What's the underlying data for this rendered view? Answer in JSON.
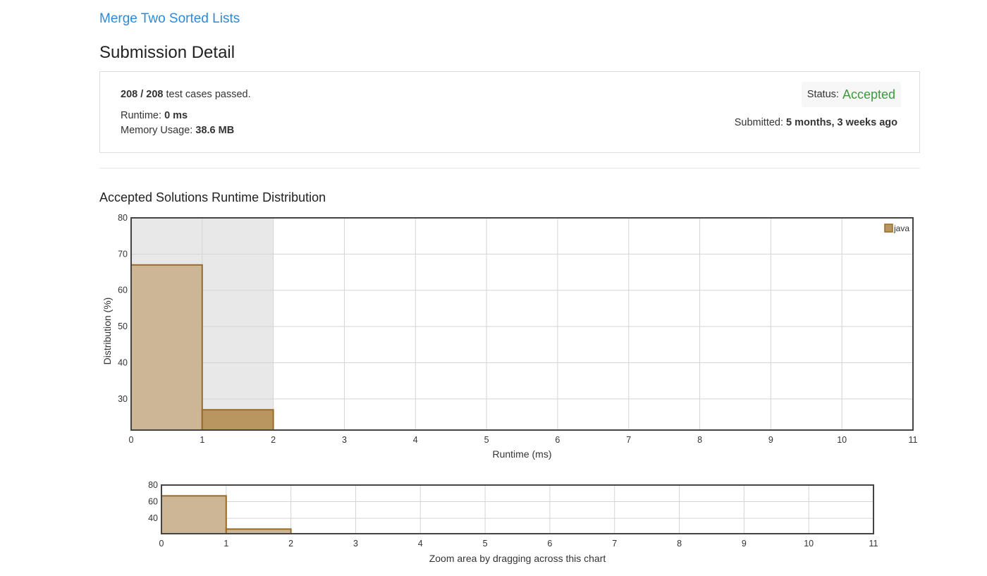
{
  "header": {
    "problem_link": "Merge Two Sorted Lists",
    "page_title": "Submission Detail"
  },
  "submission": {
    "cases_passed": "208 / 208",
    "cases_suffix": " test cases passed.",
    "runtime_label": "Runtime: ",
    "runtime_value": "0 ms",
    "memory_label": "Memory Usage: ",
    "memory_value": "38.6 MB",
    "status_label": "Status: ",
    "status_value": "Accepted",
    "submitted_label": "Submitted: ",
    "submitted_value": "5 months, 3 weeks ago"
  },
  "colors": {
    "link": "#2d8ad8",
    "accepted": "#3b9b3b",
    "bar_fill": "#ccb696",
    "bar_fill_selected": "#b99660",
    "bar_stroke": "#9a6a28",
    "highlight": "#e8e8e8"
  },
  "chart_section_title": "Accepted Solutions Runtime Distribution",
  "chart_data": [
    {
      "type": "bar",
      "name": "main",
      "xlabel": "Runtime (ms)",
      "ylabel": "Distribution (%)",
      "xlim": [
        0,
        11
      ],
      "ylim": [
        21.4,
        80
      ],
      "xticks": [
        0,
        1,
        2,
        3,
        4,
        5,
        6,
        7,
        8,
        9,
        10,
        11
      ],
      "yticks": [
        30,
        40,
        50,
        60,
        70,
        80
      ],
      "highlight_range": [
        0,
        2
      ],
      "legend": {
        "label": "java",
        "position": "top-right"
      },
      "series": [
        {
          "name": "java",
          "bins": [
            {
              "x0": 0,
              "x1": 1,
              "value": 67
            },
            {
              "x0": 1,
              "x1": 2,
              "value": 27
            }
          ]
        }
      ],
      "grid": true
    },
    {
      "type": "bar",
      "name": "overview",
      "xlabel": "Zoom area by dragging across this chart",
      "xlim": [
        0,
        11
      ],
      "ylim": [
        21.4,
        80
      ],
      "xticks": [
        0,
        1,
        2,
        3,
        4,
        5,
        6,
        7,
        8,
        9,
        10,
        11
      ],
      "yticks": [
        40,
        60,
        80
      ],
      "series": [
        {
          "name": "java",
          "bins": [
            {
              "x0": 0,
              "x1": 1,
              "value": 67
            },
            {
              "x0": 1,
              "x1": 2,
              "value": 27
            }
          ]
        }
      ],
      "grid": true
    }
  ]
}
